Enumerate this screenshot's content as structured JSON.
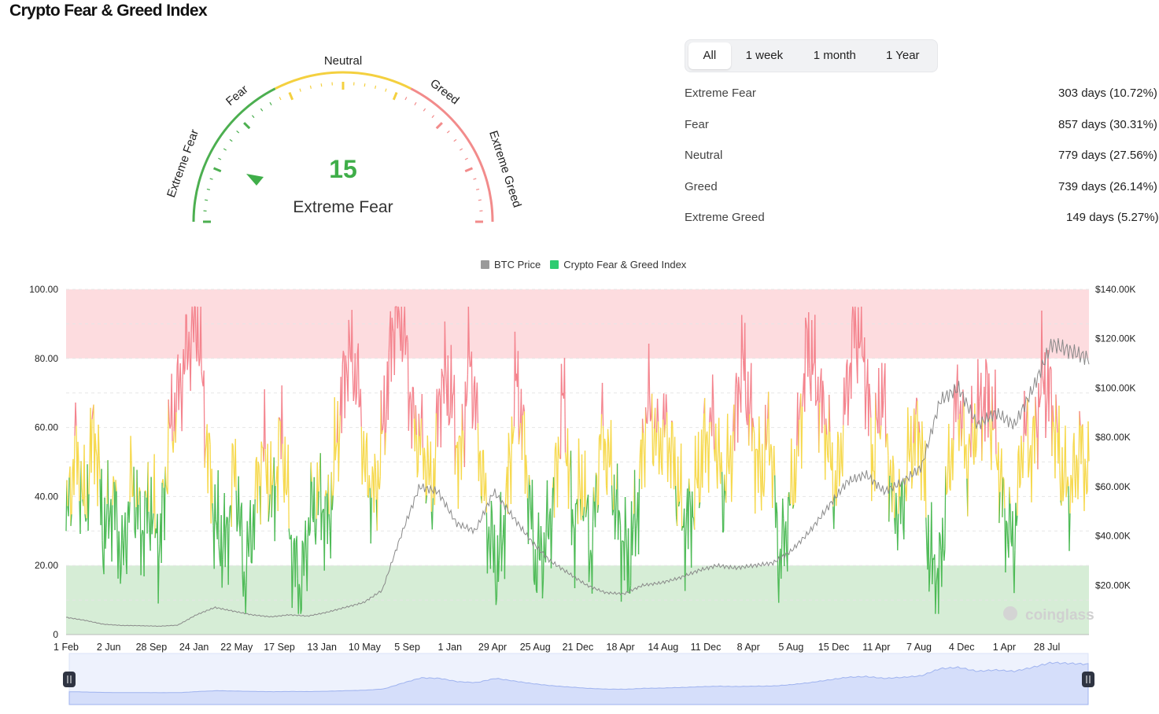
{
  "page": {
    "title": "Crypto Fear & Greed Index"
  },
  "gauge": {
    "value": "15",
    "classification": "Extreme Fear",
    "segment_labels": [
      "Extreme Fear",
      "Fear",
      "Neutral",
      "Greed",
      "Extreme Greed"
    ],
    "colors": {
      "fear": "#4caf50",
      "neutral": "#f4d03f",
      "greed": "#f28b8b",
      "value": "#3fae49"
    }
  },
  "range_tabs": [
    {
      "label": "All",
      "active": true
    },
    {
      "label": "1 week",
      "active": false
    },
    {
      "label": "1 month",
      "active": false
    },
    {
      "label": "1 Year",
      "active": false
    }
  ],
  "stats": [
    {
      "label": "Extreme Fear",
      "value": "303 days (10.72%)"
    },
    {
      "label": "Fear",
      "value": "857 days (30.31%)"
    },
    {
      "label": "Neutral",
      "value": "779 days (27.56%)"
    },
    {
      "label": "Greed",
      "value": "739 days (26.14%)"
    },
    {
      "label": "Extreme Greed",
      "value": "149 days (5.27%)"
    }
  ],
  "watermark": "coinglass",
  "chart_data": {
    "type": "line",
    "legend": [
      {
        "name": "BTC Price",
        "color": "#9a9a9a"
      },
      {
        "name": "Crypto Fear & Greed Index",
        "color": "#2ecc71"
      }
    ],
    "legend_position": "top-center",
    "y_left": {
      "ticks": [
        "100.00",
        "80.00",
        "60.00",
        "40.00",
        "20.00",
        "0"
      ],
      "range": [
        0,
        100
      ]
    },
    "y_right": {
      "ticks": [
        "$140.00K",
        "$120.00K",
        "$100.00K",
        "$80.00K",
        "$60.00K",
        "$40.00K",
        "$20.00K"
      ],
      "range": [
        0,
        140000
      ]
    },
    "x_ticks": [
      "1 Feb",
      "2 Jun",
      "28 Sep",
      "24 Jan",
      "22 May",
      "17 Sep",
      "13 Jan",
      "10 May",
      "5 Sep",
      "1 Jan",
      "29 Apr",
      "25 Aug",
      "21 Dec",
      "18 Apr",
      "14 Aug",
      "11 Dec",
      "8 Apr",
      "5 Aug",
      "15 Dec",
      "11 Apr",
      "7 Aug",
      "4 Dec",
      "1 Apr",
      "28 Jul"
    ],
    "bands": [
      {
        "from": 0,
        "to": 20,
        "color": "#d6edd6"
      },
      {
        "from": 80,
        "to": 100,
        "color": "#fddcdf"
      }
    ],
    "zone_colors": {
      "below_40": "#4cba55",
      "40_to_60": "#f6d84a",
      "above_60": "#f4838d"
    },
    "grid": true,
    "series": [
      {
        "name": "Crypto Fear & Greed Index",
        "x_step": "tick",
        "values": [
          30,
          55,
          35,
          62,
          28,
          40,
          20,
          45,
          30,
          38,
          25,
          58,
          70,
          84,
          92,
          55,
          30,
          25,
          50,
          15,
          35,
          55,
          38,
          60,
          25,
          12,
          35,
          40,
          32,
          60,
          82,
          75,
          45,
          40,
          65,
          94,
          90,
          60,
          55,
          40,
          75,
          70,
          48,
          82,
          55,
          30,
          18,
          40,
          75,
          50,
          20,
          25,
          40,
          70,
          30,
          45,
          22,
          60,
          48,
          30,
          20,
          40,
          68,
          55,
          60,
          45,
          30,
          40,
          55,
          62,
          40,
          55,
          80,
          62,
          45,
          60,
          20,
          35,
          55,
          85,
          72,
          60,
          40,
          65,
          90,
          82,
          50,
          72,
          40,
          35,
          55,
          60,
          22,
          15,
          45,
          70,
          50,
          62,
          70,
          58,
          35,
          25,
          60,
          52,
          75,
          68,
          48,
          40,
          55,
          45
        ]
      },
      {
        "name": "BTC Price",
        "x_step": "tick",
        "values": [
          7000,
          5800,
          4200,
          3700,
          3600,
          3400,
          3800,
          8000,
          11000,
          9500,
          8000,
          7200,
          8000,
          7500,
          9000,
          11000,
          13000,
          18000,
          40000,
          60000,
          58000,
          45000,
          42000,
          58000,
          48000,
          38000,
          30000,
          25000,
          20000,
          17000,
          16500,
          20000,
          21000,
          23000,
          26000,
          28000,
          27000,
          28000,
          29000,
          34000,
          42000,
          52000,
          62000,
          65000,
          58000,
          62000,
          68000,
          95000,
          100000,
          85000,
          90000,
          85000,
          100000,
          118000,
          115000,
          112000
        ]
      }
    ]
  }
}
